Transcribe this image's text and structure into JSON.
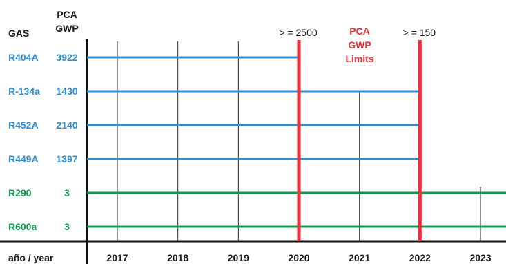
{
  "headers": {
    "gas": "GAS",
    "pca": "PCA",
    "gwp": "GWP",
    "year_axis": "año / year"
  },
  "colors": {
    "hfc": "#2f8fd0",
    "natural": "#0c9a4e",
    "limit": "#e8313c",
    "grid": "#2a2a2a",
    "axis": "#111111",
    "text": "#1a1a1a"
  },
  "limits_label": [
    "PCA",
    "GWP",
    "Limits"
  ],
  "chart_data": {
    "type": "timeline",
    "x_ticks": [
      2017,
      2018,
      2019,
      2020,
      2021,
      2022,
      2023
    ],
    "gases": [
      {
        "name": "R404A",
        "gwp": "3922",
        "group": "hfc",
        "end_year": 2020
      },
      {
        "name": "R-134a",
        "gwp": "1430",
        "group": "hfc",
        "end_year": 2022
      },
      {
        "name": "R452A",
        "gwp": "2140",
        "group": "hfc",
        "end_year": 2022
      },
      {
        "name": "R449A",
        "gwp": "1397",
        "group": "hfc",
        "end_year": 2022
      },
      {
        "name": "R290",
        "gwp": "3",
        "group": "natural",
        "end_year": null
      },
      {
        "name": "R600a",
        "gwp": "3",
        "group": "natural",
        "end_year": null
      }
    ],
    "limits": [
      {
        "year": 2020,
        "label": "> = 2500"
      },
      {
        "year": 2022,
        "label": "> = 150"
      }
    ]
  }
}
